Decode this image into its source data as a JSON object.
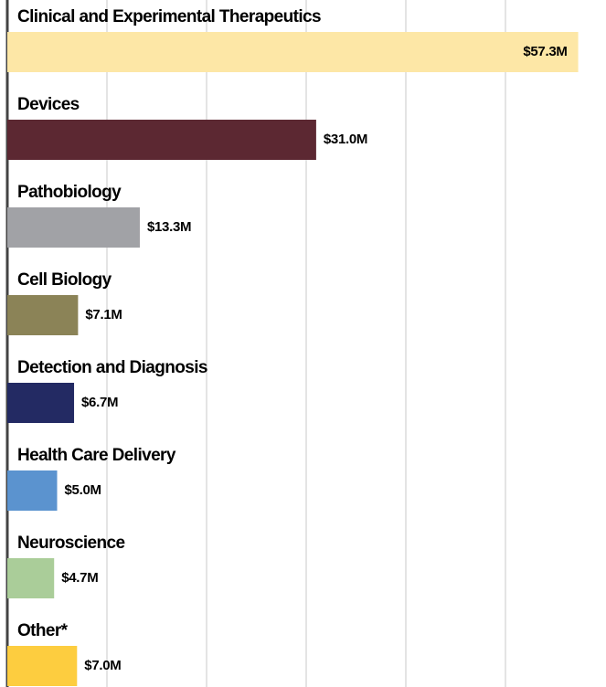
{
  "chart_data": {
    "type": "bar",
    "orientation": "horizontal",
    "categories": [
      "Clinical and Experimental Therapeutics",
      "Devices",
      "Pathobiology",
      "Cell Biology",
      "Detection and Diagnosis",
      "Health Care Delivery",
      "Neuroscience",
      "Other*"
    ],
    "values": [
      57.3,
      31.0,
      13.3,
      7.1,
      6.7,
      5.0,
      4.7,
      7.0
    ],
    "value_labels": [
      "$57.3M",
      "$31.0M",
      "$13.3M",
      "$7.1M",
      "$6.7M",
      "$5.0M",
      "$4.7M",
      "$7.0M"
    ],
    "colors": [
      "#fde7a6",
      "#5c2832",
      "#a1a2a6",
      "#8b8357",
      "#232a63",
      "#5b93cf",
      "#aacd99",
      "#fdcd3f"
    ],
    "xlim": [
      0,
      60
    ],
    "xticks": [
      0,
      10,
      20,
      30,
      40,
      50
    ],
    "grid": true
  }
}
